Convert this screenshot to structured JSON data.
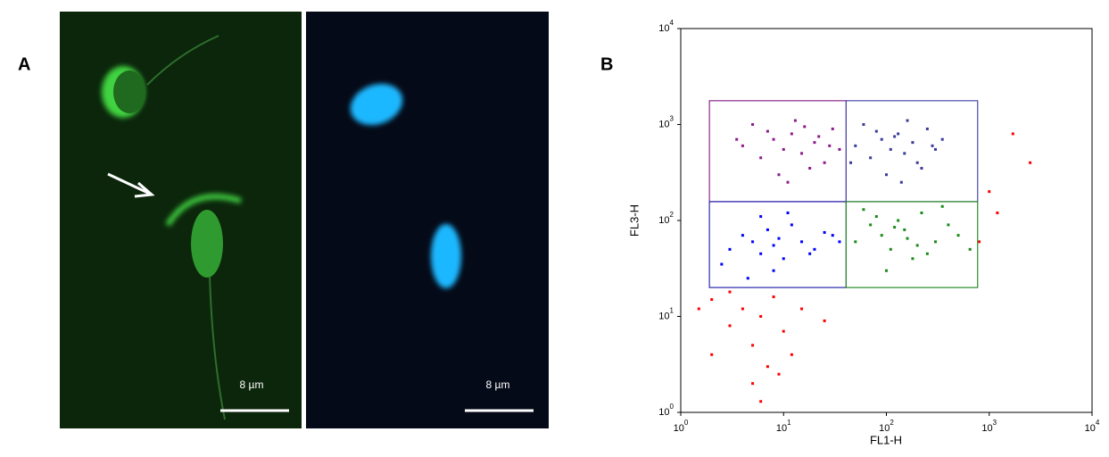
{
  "panel_a": {
    "label": "A",
    "scale_bar_labels": [
      "8 µm",
      "8 µm"
    ]
  },
  "chart_data": {
    "type": "scatter",
    "panel_label": "B",
    "x_label": "FL1-H",
    "y_label": "FL3-H",
    "log_x": true,
    "log_y": true,
    "xlim": [
      1,
      10000
    ],
    "ylim": [
      1,
      10000
    ],
    "xticks": [
      {
        "value": 1,
        "label": "10^0"
      },
      {
        "value": 10,
        "label": "10^1"
      },
      {
        "value": 100,
        "label": "10^2"
      },
      {
        "value": 1000,
        "label": "10^3"
      },
      {
        "value": 10000,
        "label": "10^4"
      }
    ],
    "yticks": [
      {
        "value": 1,
        "label": "10^0"
      },
      {
        "value": 10,
        "label": "10^1"
      },
      {
        "value": 100,
        "label": "10^2"
      },
      {
        "value": 1000,
        "label": "10^3"
      },
      {
        "value": 10000,
        "label": "10^4"
      }
    ],
    "gates": [
      {
        "color": "#8b2a8b",
        "xlim": [
          1.9,
          40.6
        ],
        "ylim": [
          157,
          1770
        ]
      },
      {
        "color": "#4a4aa8",
        "xlim": [
          40.6,
          771
        ],
        "ylim": [
          157,
          1770
        ]
      },
      {
        "color": "#2a2ab0",
        "xlim": [
          1.9,
          40.6
        ],
        "ylim": [
          20,
          157
        ]
      },
      {
        "color": "#2a8a2a",
        "xlim": [
          40.6,
          771
        ],
        "ylim": [
          20,
          157
        ]
      }
    ],
    "series": [
      {
        "color": "#8b1a8b",
        "x": [
          4,
          6,
          8,
          10,
          12,
          15,
          20,
          25,
          30,
          35,
          5,
          9,
          13,
          18,
          22,
          7,
          11,
          28,
          16,
          3.5
        ],
        "y": [
          600,
          450,
          700,
          550,
          800,
          500,
          650,
          400,
          900,
          550,
          1000,
          300,
          1100,
          350,
          750,
          850,
          250,
          600,
          950,
          700
        ]
      },
      {
        "color": "#3a3a9a",
        "x": [
          50,
          70,
          90,
          110,
          130,
          150,
          180,
          200,
          250,
          300,
          60,
          100,
          160,
          220,
          120,
          80,
          140,
          280,
          45,
          350
        ],
        "y": [
          600,
          450,
          700,
          550,
          800,
          500,
          650,
          400,
          900,
          550,
          1000,
          300,
          1100,
          350,
          750,
          850,
          250,
          600,
          400,
          700
        ]
      },
      {
        "color": "#0000ff",
        "x": [
          3,
          4,
          5,
          6,
          7,
          8,
          9,
          10,
          12,
          15,
          20,
          25,
          2.5,
          6,
          8,
          11,
          18,
          30,
          4.5,
          35
        ],
        "y": [
          50,
          70,
          60,
          45,
          80,
          55,
          65,
          40,
          90,
          60,
          50,
          75,
          35,
          110,
          30,
          120,
          45,
          70,
          25,
          60
        ]
      },
      {
        "color": "#1a8a1a",
        "x": [
          50,
          70,
          90,
          110,
          130,
          150,
          180,
          220,
          300,
          400,
          60,
          100,
          250,
          500,
          80,
          160,
          350,
          120,
          200,
          650
        ],
        "y": [
          60,
          90,
          70,
          50,
          100,
          80,
          40,
          120,
          60,
          90,
          130,
          30,
          45,
          70,
          110,
          65,
          140,
          85,
          55,
          50
        ]
      },
      {
        "color": "#ff0000",
        "x": [
          2,
          3,
          4,
          5,
          6,
          7,
          8,
          10,
          12,
          5,
          3,
          9,
          15,
          25,
          1.5,
          6,
          1700,
          2500,
          1200,
          800,
          1000,
          2
        ],
        "y": [
          15,
          8,
          12,
          5,
          10,
          3,
          16,
          7,
          4,
          2,
          18,
          2.5,
          12,
          9,
          12,
          1.3,
          800,
          400,
          120,
          60,
          200,
          4
        ]
      }
    ]
  }
}
